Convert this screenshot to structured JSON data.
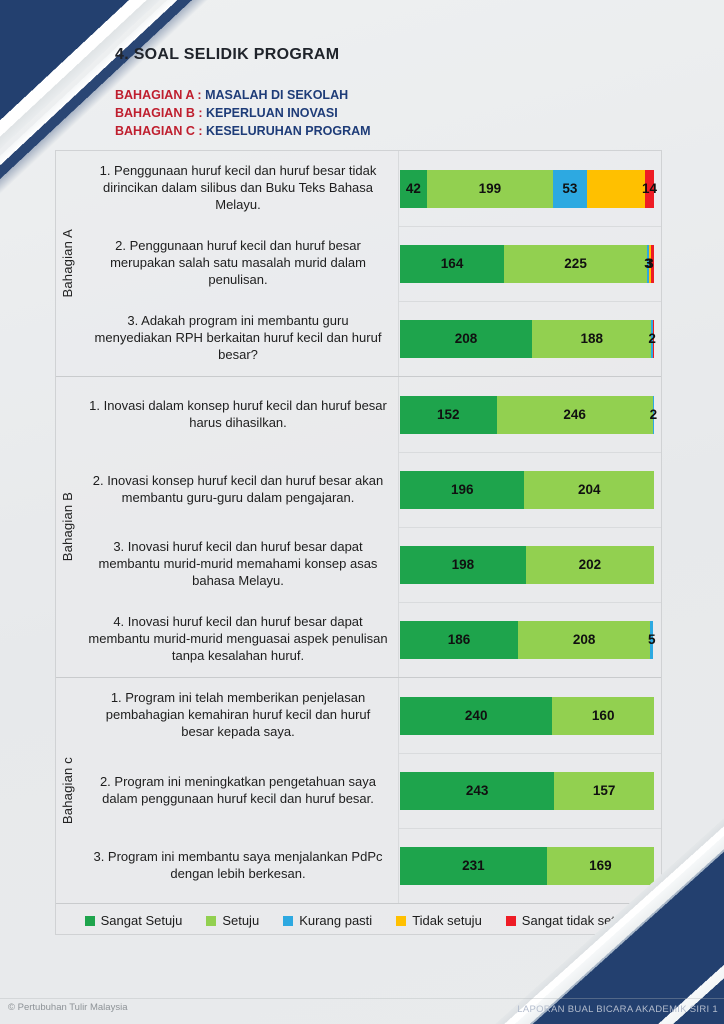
{
  "title": "4. SOAL SELIDIK PROGRAM",
  "sections_header": [
    {
      "label": "BAHAGIAN A :",
      "value": "MASALAH DI SEKOLAH"
    },
    {
      "label": "BAHAGIAN B :",
      "value": "KEPERLUAN INOVASI"
    },
    {
      "label": "BAHAGIAN C :",
      "value": "KESELURUHAN PROGRAM"
    }
  ],
  "chart_data": {
    "type": "bar",
    "stacked": true,
    "orientation": "horizontal",
    "xlim": [
      0,
      400
    ],
    "legend_position": "bottom",
    "series_names": [
      "Sangat Setuju",
      "Setuju",
      "Kurang pasti",
      "Tidak setuju",
      "Sangat tidak setuju"
    ],
    "series_colors": [
      "#1ea44c",
      "#92d050",
      "#2da9e1",
      "#ffc000",
      "#ee1c25"
    ],
    "groups": [
      {
        "group": "Bahagian A",
        "rows": [
          {
            "question": "1. Penggunaan huruf kecil dan huruf besar tidak dirincikan dalam silibus dan Buku Teks Bahasa Melayu.",
            "values": [
              42,
              199,
              53,
              92,
              14
            ],
            "labels": [
              "42",
              "199",
              "53",
              "",
              "14"
            ]
          },
          {
            "question": "2. Penggunaan huruf kecil dan huruf besar merupakan salah satu masalah murid dalam penulisan.",
            "values": [
              164,
              225,
              3,
              3,
              5
            ],
            "labels": [
              "164",
              "225",
              "3",
              "3",
              ""
            ]
          },
          {
            "question": "3. Adakah program ini membantu guru menyediakan RPH berkaitan huruf kecil dan huruf besar?",
            "values": [
              208,
              188,
              2,
              1,
              1
            ],
            "labels": [
              "208",
              "188",
              "2",
              "",
              ""
            ]
          }
        ]
      },
      {
        "group": "Bahagian B",
        "rows": [
          {
            "question": "1. Inovasi dalam konsep huruf kecil dan huruf besar harus dihasilkan.",
            "values": [
              152,
              246,
              2,
              0,
              0
            ],
            "labels": [
              "152",
              "246",
              "2",
              "",
              ""
            ]
          },
          {
            "question": "2. Inovasi konsep huruf kecil dan huruf besar akan membantu guru-guru dalam pengajaran.",
            "values": [
              196,
              204,
              0,
              0,
              0
            ],
            "labels": [
              "196",
              "204",
              "",
              "",
              ""
            ]
          },
          {
            "question": "3. Inovasi huruf kecil dan huruf besar dapat membantu murid-murid memahami konsep asas bahasa Melayu.",
            "values": [
              198,
              202,
              0,
              0,
              0
            ],
            "labels": [
              "198",
              "202",
              "",
              "",
              ""
            ]
          },
          {
            "question": "4. Inovasi huruf kecil dan huruf besar dapat membantu murid-murid menguasai aspek penulisan tanpa kesalahan huruf.",
            "values": [
              186,
              208,
              5,
              0,
              0
            ],
            "labels": [
              "186",
              "208",
              "5",
              "",
              ""
            ]
          }
        ]
      },
      {
        "group": "Bahagian c",
        "rows": [
          {
            "question": "1. Program ini telah memberikan penjelasan pembahagian kemahiran huruf kecil dan huruf besar kepada saya.",
            "values": [
              240,
              160,
              0,
              0,
              0
            ],
            "labels": [
              "240",
              "160",
              "",
              "",
              ""
            ]
          },
          {
            "question": "2. Program ini meningkatkan pengetahuan saya dalam penggunaan huruf kecil dan huruf besar.",
            "values": [
              243,
              157,
              0,
              0,
              0
            ],
            "labels": [
              "243",
              "157",
              "",
              "",
              ""
            ]
          },
          {
            "question": "3. Program ini membantu saya menjalankan PdPc dengan lebih berkesan.",
            "values": [
              231,
              169,
              0,
              0,
              0
            ],
            "labels": [
              "231",
              "169",
              "",
              "",
              ""
            ]
          }
        ]
      }
    ],
    "legend": [
      {
        "label": "Sangat Setuju",
        "color": "#1ea44c"
      },
      {
        "label": "Setuju",
        "color": "#92d050"
      },
      {
        "label": "Kurang pasti",
        "color": "#2da9e1"
      },
      {
        "label": "Tidak setuju",
        "color": "#ffc000"
      },
      {
        "label": "Sangat tidak setuju",
        "color": "#ee1c25"
      }
    ]
  },
  "footer": {
    "left": "© Pertubuhan Tulir Malaysia",
    "right": "LAPORAN BUAL BICARA AKADEMIK SIRI 1"
  },
  "colors": {
    "accent_navy": "#23406f",
    "heading_red": "#bf1e2e",
    "heading_blue": "#1e3c78",
    "page_bg": "#e9ebec"
  }
}
